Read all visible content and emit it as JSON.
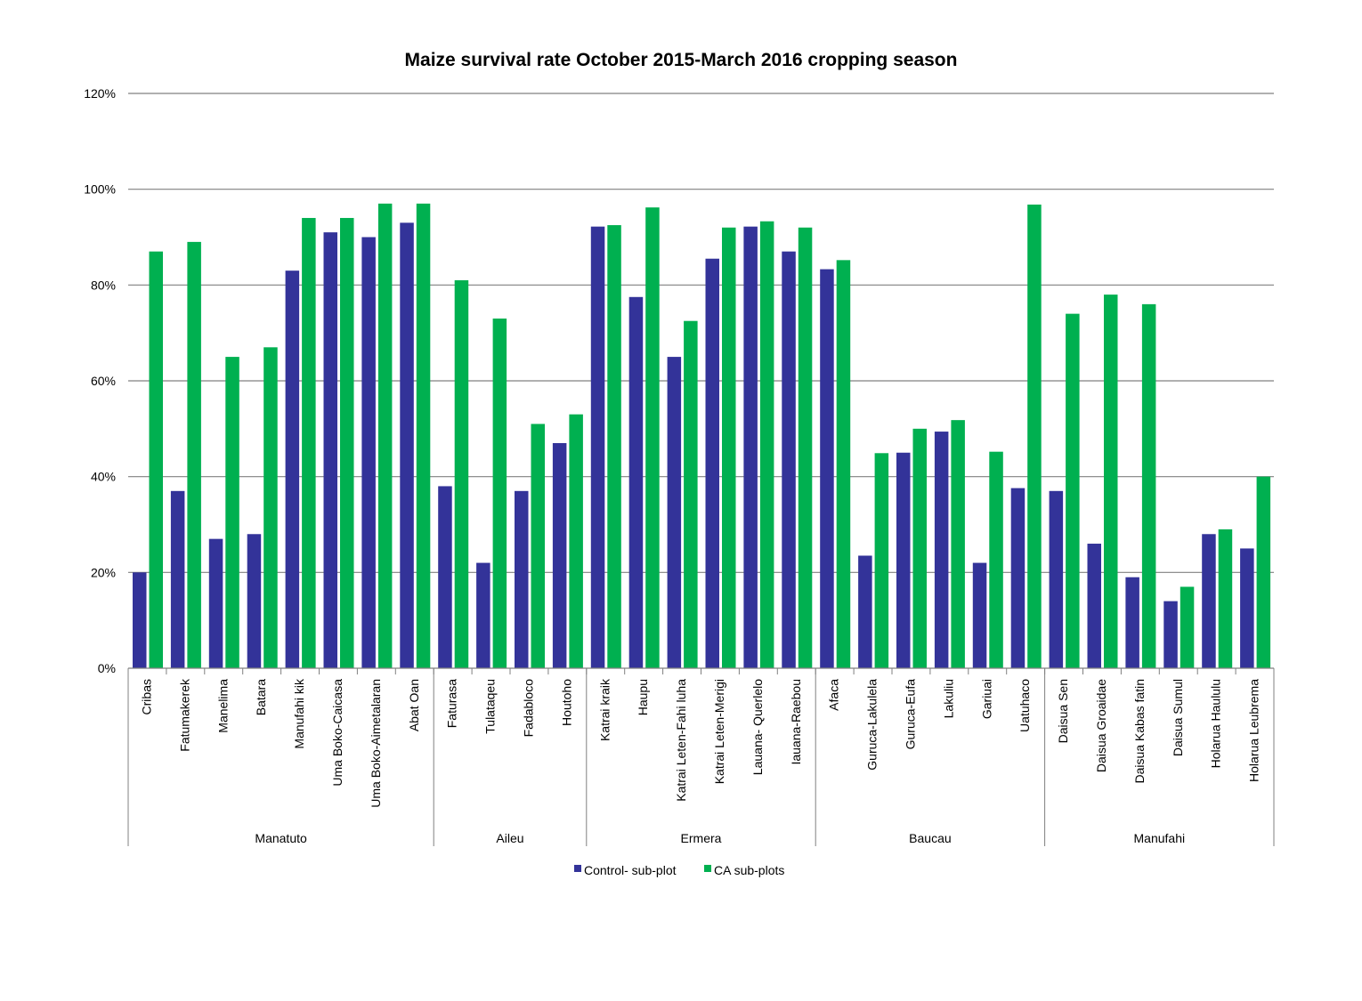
{
  "chart_data": {
    "type": "bar",
    "title": "Maize survival rate October 2015-March 2016  cropping season",
    "ylim": [
      0,
      1.2
    ],
    "y_ticks": [
      0,
      0.2,
      0.4,
      0.6,
      0.8,
      1.0,
      1.2
    ],
    "y_tick_labels": [
      "0%",
      "20%",
      "40%",
      "60%",
      "80%",
      "100%",
      "120%"
    ],
    "grid": true,
    "legend_position": "bottom",
    "colors": {
      "control": "#333399",
      "ca": "#00B050",
      "grid": "#808080",
      "axis": "#808080"
    },
    "categories": [
      "Cribas",
      "Fatumakerek",
      "Manelima",
      "Batara",
      "Manufahi kik",
      "Uma Boko-Caicasa",
      "Uma Boko-Aimetalaran",
      "Abat Oan",
      "Faturasa",
      "Tulataqeu",
      "Fadabloco",
      "Houtoho",
      "Katrai kraik",
      "Haupu",
      "Katrai Leten-Fahi luha",
      "Katrai Leten-Merigi",
      "Lauana- Querlelo",
      "Iauana-Raebou",
      "Afaca",
      "Guruca-Lakulela",
      "Guruca-Eufa",
      "Lakuliu",
      "Gariuai",
      "Uatuhaco",
      "Daisua Sen",
      "Daisua Groaidae",
      "Daisua Kabas fatin",
      "Daisua Sumul",
      "Holarua Haululu",
      "Holarua Leubrema"
    ],
    "groups": [
      {
        "name": "Manatuto",
        "count": 8
      },
      {
        "name": "Aileu",
        "count": 4
      },
      {
        "name": "Ermera",
        "count": 6
      },
      {
        "name": "Baucau",
        "count": 6
      },
      {
        "name": "Manufahi",
        "count": 6
      }
    ],
    "series": [
      {
        "name": "Control- sub-plot",
        "values": [
          0.2,
          0.37,
          0.27,
          0.28,
          0.83,
          0.91,
          0.9,
          0.93,
          0.38,
          0.22,
          0.37,
          0.47,
          0.922,
          0.775,
          0.65,
          0.855,
          0.922,
          0.87,
          0.833,
          0.235,
          0.45,
          0.494,
          0.22,
          0.376,
          0.37,
          0.26,
          0.19,
          0.14,
          0.28,
          0.25
        ]
      },
      {
        "name": "CA sub-plots",
        "values": [
          0.87,
          0.89,
          0.65,
          0.67,
          0.94,
          0.94,
          0.97,
          0.97,
          0.81,
          0.73,
          0.51,
          0.53,
          0.925,
          0.962,
          0.725,
          0.92,
          0.933,
          0.92,
          0.852,
          0.449,
          0.5,
          0.518,
          0.452,
          0.968,
          0.74,
          0.78,
          0.76,
          0.17,
          0.29,
          0.4
        ]
      }
    ]
  }
}
